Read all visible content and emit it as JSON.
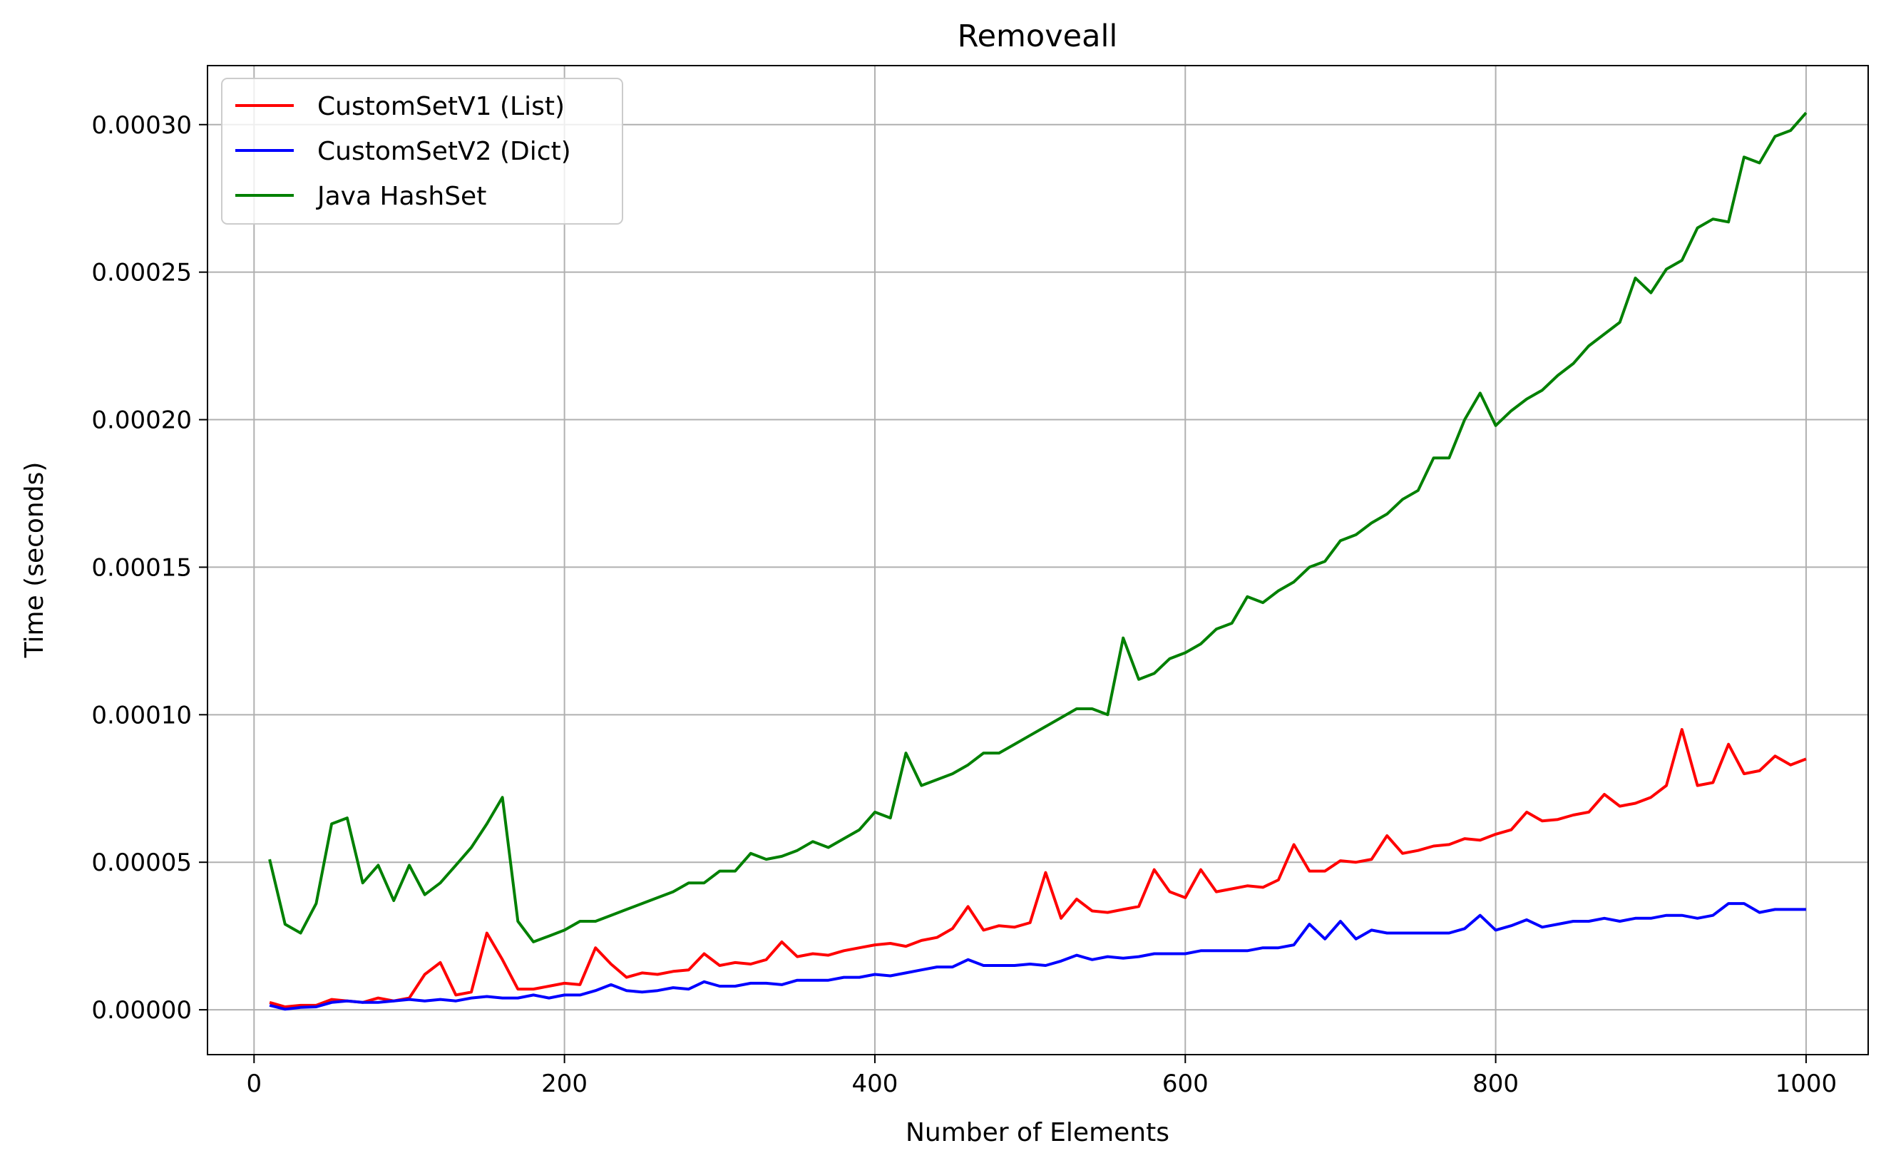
{
  "chart_data": {
    "type": "line",
    "title": "Removeall",
    "xlabel": "Number of Elements",
    "ylabel": "Time (seconds)",
    "xlim": [
      -30,
      1040
    ],
    "ylim": [
      -1.52e-05,
      0.00032
    ],
    "xticks": [
      0,
      200,
      400,
      600,
      800,
      1000
    ],
    "xtick_labels": [
      "0",
      "200",
      "400",
      "600",
      "800",
      "1000"
    ],
    "yticks": [
      0,
      5e-05,
      0.0001,
      0.00015,
      0.0002,
      0.00025,
      0.0003
    ],
    "ytick_labels": [
      "0.00000",
      "0.00005",
      "0.00010",
      "0.00015",
      "0.00020",
      "0.00025",
      "0.00030"
    ],
    "grid": true,
    "legend_position": "top-left",
    "x": [
      10,
      20,
      30,
      40,
      50,
      60,
      70,
      80,
      90,
      100,
      110,
      120,
      130,
      140,
      150,
      160,
      170,
      180,
      190,
      200,
      210,
      220,
      230,
      240,
      250,
      260,
      270,
      280,
      290,
      300,
      310,
      320,
      330,
      340,
      350,
      360,
      370,
      380,
      390,
      400,
      410,
      420,
      430,
      440,
      450,
      460,
      470,
      480,
      490,
      500,
      510,
      520,
      530,
      540,
      550,
      560,
      570,
      580,
      590,
      600,
      610,
      620,
      630,
      640,
      650,
      660,
      670,
      680,
      690,
      700,
      710,
      720,
      730,
      740,
      750,
      760,
      770,
      780,
      790,
      800,
      810,
      820,
      830,
      840,
      850,
      860,
      870,
      880,
      890,
      900,
      910,
      920,
      930,
      940,
      950,
      960,
      970,
      980,
      990,
      1000
    ],
    "series": [
      {
        "name": "CustomSetV1 (List)",
        "color": "#ff0000",
        "values": [
          2.5e-06,
          1e-06,
          1.5e-06,
          1.5e-06,
          3.5e-06,
          3e-06,
          2.5e-06,
          4e-06,
          3e-06,
          4e-06,
          1.2e-05,
          1.6e-05,
          5e-06,
          6e-06,
          2.6e-05,
          1.7e-05,
          7e-06,
          7e-06,
          8e-06,
          9e-06,
          8.5e-06,
          2.1e-05,
          1.55e-05,
          1.1e-05,
          1.25e-05,
          1.2e-05,
          1.3e-05,
          1.35e-05,
          1.9e-05,
          1.5e-05,
          1.6e-05,
          1.55e-05,
          1.7e-05,
          2.3e-05,
          1.8e-05,
          1.9e-05,
          1.85e-05,
          2e-05,
          2.1e-05,
          2.2e-05,
          2.25e-05,
          2.15e-05,
          2.35e-05,
          2.45e-05,
          2.75e-05,
          3.5e-05,
          2.7e-05,
          2.85e-05,
          2.8e-05,
          2.95e-05,
          4.65e-05,
          3.1e-05,
          3.75e-05,
          3.35e-05,
          3.3e-05,
          3.4e-05,
          3.5e-05,
          4.75e-05,
          4e-05,
          3.8e-05,
          4.75e-05,
          4e-05,
          4.1e-05,
          4.2e-05,
          4.15e-05,
          4.4e-05,
          5.6e-05,
          4.7e-05,
          4.7e-05,
          5.05e-05,
          5e-05,
          5.1e-05,
          5.9e-05,
          5.3e-05,
          5.4e-05,
          5.55e-05,
          5.6e-05,
          5.8e-05,
          5.75e-05,
          5.95e-05,
          6.1e-05,
          6.7e-05,
          6.4e-05,
          6.45e-05,
          6.6e-05,
          6.7e-05,
          7.3e-05,
          6.9e-05,
          7e-05,
          7.2e-05,
          7.6e-05,
          9.5e-05,
          7.6e-05,
          7.7e-05,
          9e-05,
          8e-05,
          8.1e-05,
          8.6e-05,
          8.3e-05,
          8.5e-05
        ]
      },
      {
        "name": "CustomSetV2 (Dict)",
        "color": "#0000ff",
        "values": [
          1.5e-06,
          2e-07,
          8e-07,
          1e-06,
          2.5e-06,
          3e-06,
          2.5e-06,
          2.5e-06,
          3e-06,
          3.5e-06,
          3e-06,
          3.5e-06,
          3e-06,
          4e-06,
          4.5e-06,
          4e-06,
          4e-06,
          5e-06,
          4e-06,
          5e-06,
          5e-06,
          6.5e-06,
          8.5e-06,
          6.5e-06,
          6e-06,
          6.5e-06,
          7.5e-06,
          7e-06,
          9.5e-06,
          8e-06,
          8e-06,
          9e-06,
          9e-06,
          8.5e-06,
          1e-05,
          1e-05,
          1e-05,
          1.1e-05,
          1.1e-05,
          1.2e-05,
          1.15e-05,
          1.25e-05,
          1.35e-05,
          1.45e-05,
          1.45e-05,
          1.7e-05,
          1.5e-05,
          1.5e-05,
          1.5e-05,
          1.55e-05,
          1.5e-05,
          1.65e-05,
          1.85e-05,
          1.7e-05,
          1.8e-05,
          1.75e-05,
          1.8e-05,
          1.9e-05,
          1.9e-05,
          1.9e-05,
          2e-05,
          2e-05,
          2e-05,
          2e-05,
          2.1e-05,
          2.1e-05,
          2.2e-05,
          2.9e-05,
          2.4e-05,
          3e-05,
          2.4e-05,
          2.7e-05,
          2.6e-05,
          2.6e-05,
          2.6e-05,
          2.6e-05,
          2.6e-05,
          2.75e-05,
          3.2e-05,
          2.7e-05,
          2.85e-05,
          3.05e-05,
          2.8e-05,
          2.9e-05,
          3e-05,
          3e-05,
          3.1e-05,
          3e-05,
          3.1e-05,
          3.1e-05,
          3.2e-05,
          3.2e-05,
          3.1e-05,
          3.2e-05,
          3.6e-05,
          3.6e-05,
          3.3e-05,
          3.4e-05,
          3.4e-05,
          3.4e-05
        ]
      },
      {
        "name": "Java HashSet",
        "color": "#008000",
        "values": [
          5.1e-05,
          2.9e-05,
          2.6e-05,
          3.6e-05,
          6.3e-05,
          6.5e-05,
          4.3e-05,
          4.9e-05,
          3.7e-05,
          4.9e-05,
          3.9e-05,
          4.3e-05,
          4.9e-05,
          5.5e-05,
          6.3e-05,
          7.2e-05,
          3e-05,
          2.3e-05,
          2.5e-05,
          2.7e-05,
          3e-05,
          3e-05,
          3.2e-05,
          3.4e-05,
          3.6e-05,
          3.8e-05,
          4e-05,
          4.3e-05,
          4.3e-05,
          4.7e-05,
          4.7e-05,
          5.3e-05,
          5.1e-05,
          5.2e-05,
          5.4e-05,
          5.7e-05,
          5.5e-05,
          5.8e-05,
          6.1e-05,
          6.7e-05,
          6.5e-05,
          8.7e-05,
          7.6e-05,
          7.8e-05,
          8e-05,
          8.3e-05,
          8.7e-05,
          8.7e-05,
          9e-05,
          9.3e-05,
          9.6e-05,
          9.9e-05,
          0.000102,
          0.000102,
          0.0001,
          0.000126,
          0.000112,
          0.000114,
          0.000119,
          0.000121,
          0.000124,
          0.000129,
          0.000131,
          0.00014,
          0.000138,
          0.000142,
          0.000145,
          0.00015,
          0.000152,
          0.000159,
          0.000161,
          0.000165,
          0.000168,
          0.000173,
          0.000176,
          0.000187,
          0.000187,
          0.0002,
          0.000209,
          0.000198,
          0.000203,
          0.000207,
          0.00021,
          0.000215,
          0.000219,
          0.000225,
          0.000229,
          0.000233,
          0.000248,
          0.000243,
          0.000251,
          0.000254,
          0.000265,
          0.000268,
          0.000267,
          0.000289,
          0.000287,
          0.000296,
          0.000298,
          0.000304
        ]
      }
    ]
  }
}
